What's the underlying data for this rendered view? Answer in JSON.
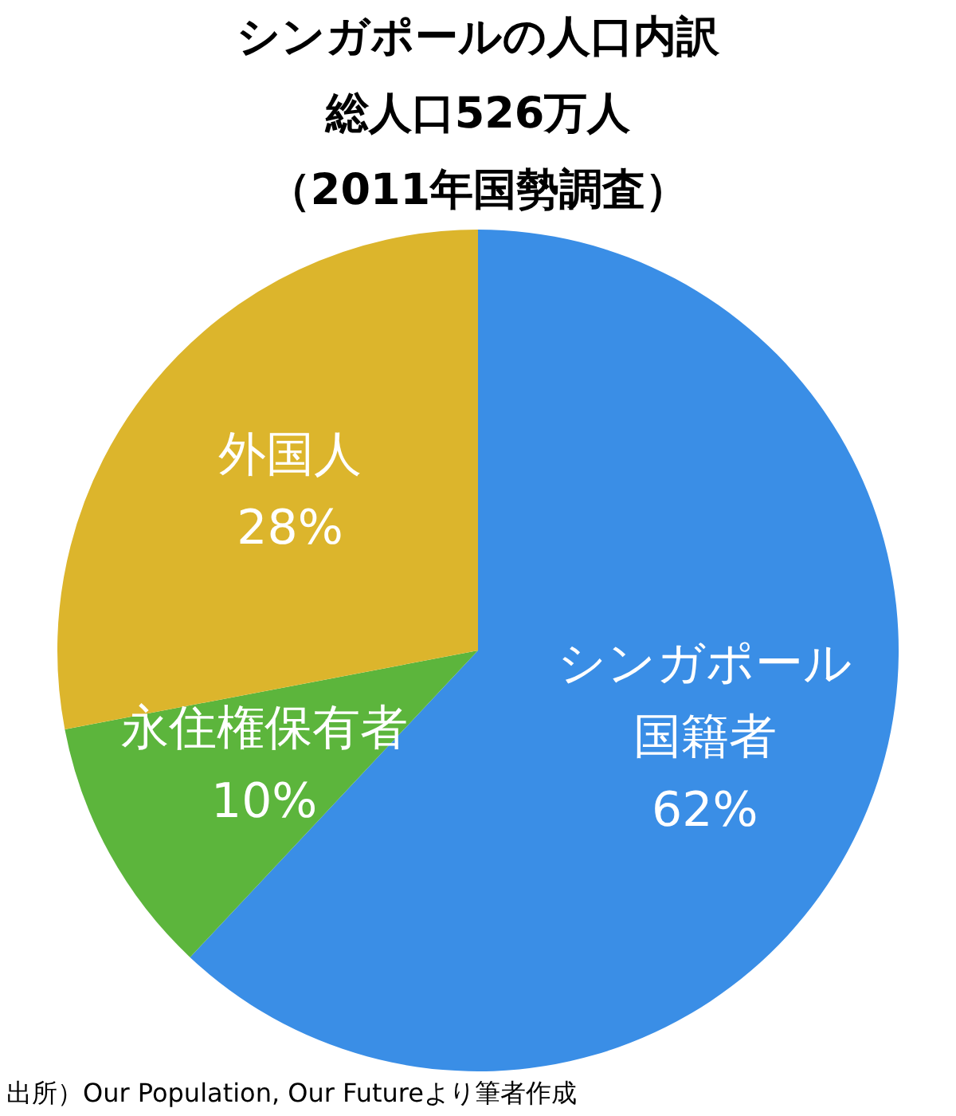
{
  "chart_data": {
    "type": "pie",
    "title": "シンガポールの人口内訳",
    "subtitle": [
      "総人口526万人",
      "（2011年国勢調査）"
    ],
    "categories": [
      "シンガポール国籍者",
      "永住権保有者",
      "外国人"
    ],
    "values": [
      62,
      10,
      28
    ],
    "colors": [
      "#3a8ee6",
      "#5cb53c",
      "#dcb52c"
    ],
    "value_labels": [
      "62%",
      "10%",
      "28%"
    ],
    "legend": false,
    "annotations": [
      "出所）Our Population, Our Futureより筆者作成"
    ]
  }
}
